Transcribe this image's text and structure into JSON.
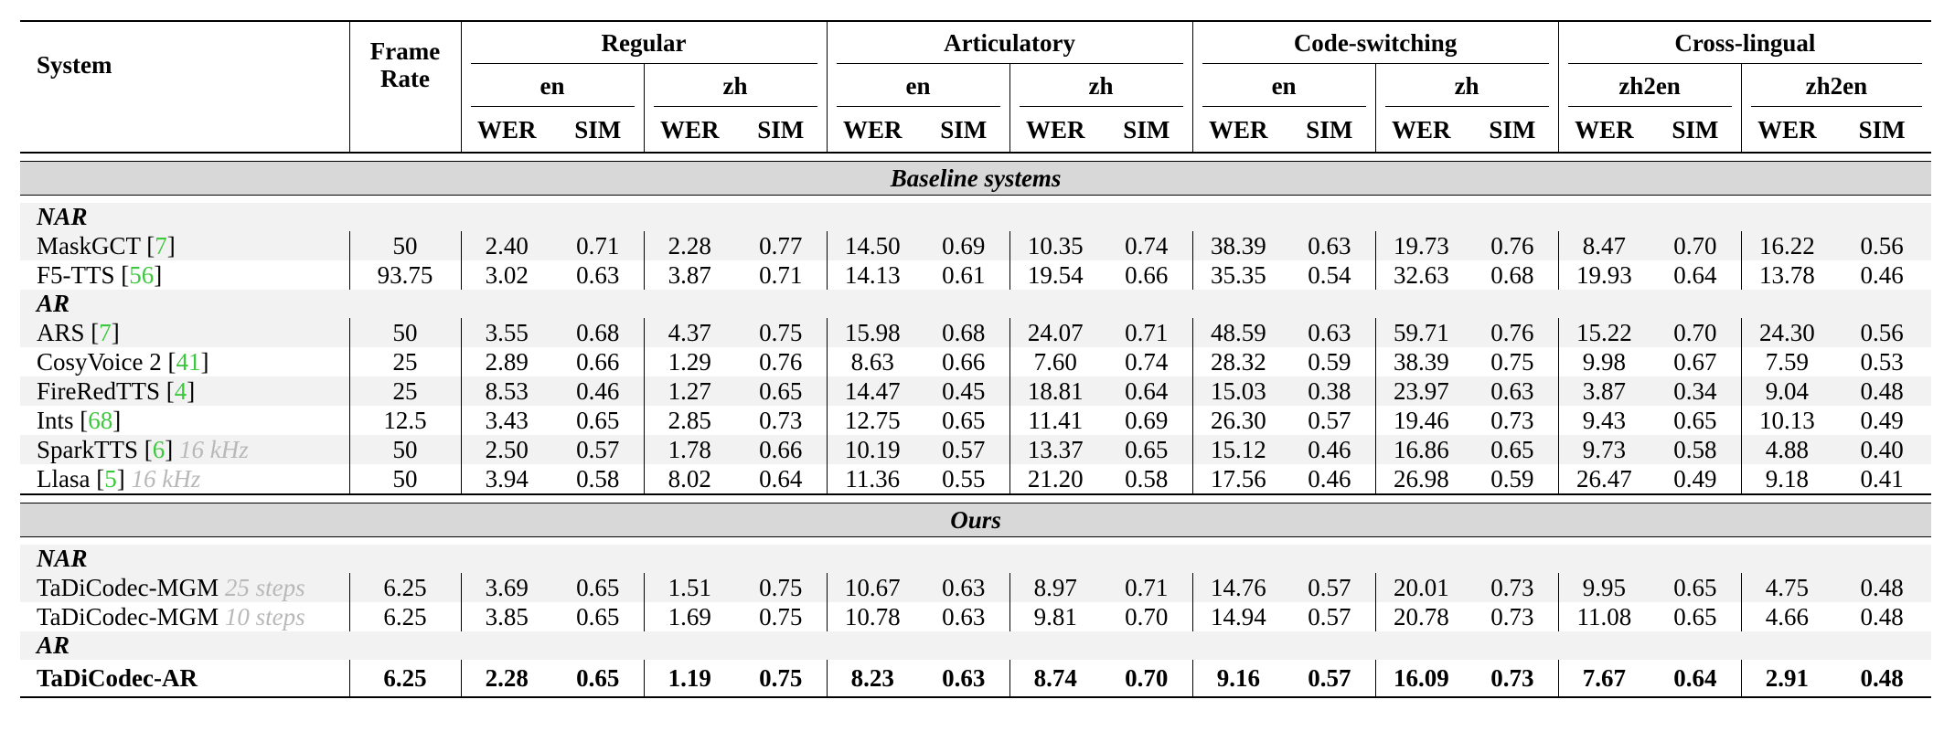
{
  "header": {
    "system": "System",
    "frame_rate_line1": "Frame",
    "frame_rate_line2": "Rate",
    "groups": [
      "Regular",
      "Articulatory",
      "Code-switching",
      "Cross-lingual"
    ],
    "langs": [
      "en",
      "zh",
      "en",
      "zh",
      "en",
      "zh",
      "zh2en",
      "zh2en"
    ],
    "metrics": [
      "WER",
      "SIM",
      "WER",
      "SIM",
      "WER",
      "SIM",
      "WER",
      "SIM",
      "WER",
      "SIM",
      "WER",
      "SIM",
      "WER",
      "SIM",
      "WER",
      "SIM"
    ]
  },
  "sections": [
    {
      "title": "Baseline systems",
      "subgroups": [
        {
          "label": "NAR",
          "rows": [
            {
              "name": "MaskGCT",
              "cite": "7",
              "note": "",
              "frame_rate": "50",
              "values": [
                "2.40",
                "0.71",
                "2.28",
                "0.77",
                "14.50",
                "0.69",
                "10.35",
                "0.74",
                "38.39",
                "0.63",
                "19.73",
                "0.76",
                "8.47",
                "0.70",
                "16.22",
                "0.56"
              ]
            },
            {
              "name": "F5-TTS",
              "cite": "56",
              "note": "",
              "frame_rate": "93.75",
              "values": [
                "3.02",
                "0.63",
                "3.87",
                "0.71",
                "14.13",
                "0.61",
                "19.54",
                "0.66",
                "35.35",
                "0.54",
                "32.63",
                "0.68",
                "19.93",
                "0.64",
                "13.78",
                "0.46"
              ]
            }
          ]
        },
        {
          "label": "AR",
          "rows": [
            {
              "name": "ARS",
              "cite": "7",
              "note": "",
              "frame_rate": "50",
              "values": [
                "3.55",
                "0.68",
                "4.37",
                "0.75",
                "15.98",
                "0.68",
                "24.07",
                "0.71",
                "48.59",
                "0.63",
                "59.71",
                "0.76",
                "15.22",
                "0.70",
                "24.30",
                "0.56"
              ]
            },
            {
              "name": "CosyVoice 2",
              "cite": "41",
              "note": "",
              "frame_rate": "25",
              "values": [
                "2.89",
                "0.66",
                "1.29",
                "0.76",
                "8.63",
                "0.66",
                "7.60",
                "0.74",
                "28.32",
                "0.59",
                "38.39",
                "0.75",
                "9.98",
                "0.67",
                "7.59",
                "0.53"
              ]
            },
            {
              "name": "FireRedTTS",
              "cite": "4",
              "note": "",
              "frame_rate": "25",
              "values": [
                "8.53",
                "0.46",
                "1.27",
                "0.65",
                "14.47",
                "0.45",
                "18.81",
                "0.64",
                "15.03",
                "0.38",
                "23.97",
                "0.63",
                "3.87",
                "0.34",
                "9.04",
                "0.48"
              ]
            },
            {
              "name": "Ints",
              "cite": "68",
              "note": "",
              "frame_rate": "12.5",
              "values": [
                "3.43",
                "0.65",
                "2.85",
                "0.73",
                "12.75",
                "0.65",
                "11.41",
                "0.69",
                "26.30",
                "0.57",
                "19.46",
                "0.73",
                "9.43",
                "0.65",
                "10.13",
                "0.49"
              ]
            },
            {
              "name": "SparkTTS",
              "cite": "6",
              "note": "16 kHz",
              "frame_rate": "50",
              "values": [
                "2.50",
                "0.57",
                "1.78",
                "0.66",
                "10.19",
                "0.57",
                "13.37",
                "0.65",
                "15.12",
                "0.46",
                "16.86",
                "0.65",
                "9.73",
                "0.58",
                "4.88",
                "0.40"
              ]
            },
            {
              "name": "Llasa",
              "cite": "5",
              "note": "16 kHz",
              "frame_rate": "50",
              "values": [
                "3.94",
                "0.58",
                "8.02",
                "0.64",
                "11.36",
                "0.55",
                "21.20",
                "0.58",
                "17.56",
                "0.46",
                "26.98",
                "0.59",
                "26.47",
                "0.49",
                "9.18",
                "0.41"
              ]
            }
          ]
        }
      ]
    },
    {
      "title": "Ours",
      "subgroups": [
        {
          "label": "NAR",
          "rows": [
            {
              "name": "TaDiCodec-MGM",
              "cite": "",
              "note": "25 steps",
              "frame_rate": "6.25",
              "values": [
                "3.69",
                "0.65",
                "1.51",
                "0.75",
                "10.67",
                "0.63",
                "8.97",
                "0.71",
                "14.76",
                "0.57",
                "20.01",
                "0.73",
                "9.95",
                "0.65",
                "4.75",
                "0.48"
              ]
            },
            {
              "name": "TaDiCodec-MGM",
              "cite": "",
              "note": "10 steps",
              "frame_rate": "6.25",
              "values": [
                "3.85",
                "0.65",
                "1.69",
                "0.75",
                "10.78",
                "0.63",
                "9.81",
                "0.70",
                "14.94",
                "0.57",
                "20.78",
                "0.73",
                "11.08",
                "0.65",
                "4.66",
                "0.48"
              ]
            }
          ]
        },
        {
          "label": "AR",
          "rows": [
            {
              "name": "TaDiCodec-AR",
              "cite": "",
              "note": "",
              "frame_rate": "6.25",
              "bold": true,
              "values": [
                "2.28",
                "0.65",
                "1.19",
                "0.75",
                "8.23",
                "0.63",
                "8.74",
                "0.70",
                "9.16",
                "0.57",
                "16.09",
                "0.73",
                "7.67",
                "0.64",
                "2.91",
                "0.48"
              ]
            }
          ]
        }
      ]
    }
  ]
}
